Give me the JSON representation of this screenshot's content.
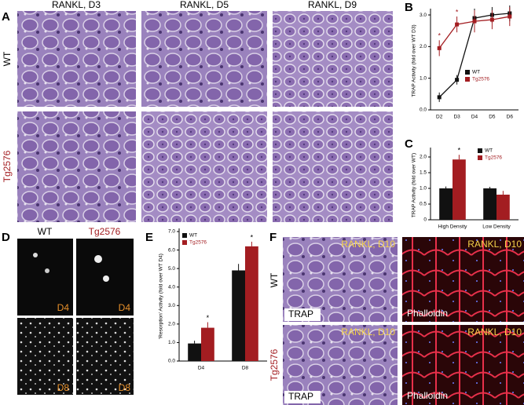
{
  "figure": {
    "panels": [
      "A",
      "B",
      "C",
      "D",
      "E",
      "F"
    ]
  },
  "panel_a": {
    "columns": [
      "RANKL, D3",
      "RANKL, D5",
      "RANKL, D9"
    ],
    "rows": [
      "WT",
      "Tg2576"
    ]
  },
  "panel_d": {
    "columns": [
      "WT",
      "Tg2576"
    ],
    "day_labels": [
      "D4",
      "D4",
      "D8",
      "D8"
    ]
  },
  "panel_f": {
    "rows": [
      "WT",
      "Tg2576"
    ],
    "image_labels": [
      "RANKL, D10",
      "RANKL, D10",
      "RANKL, D10",
      "RANKL, D10"
    ],
    "stain_labels": [
      "TRAP",
      "Phalloidin",
      "TRAP",
      "Phalloidin"
    ]
  },
  "chart_data": [
    {
      "type": "line",
      "y_label": "TRAP Activity (fold over WT D3)",
      "categories": [
        "D2",
        "D3",
        "D4",
        "D5",
        "D6"
      ],
      "series": [
        {
          "name": "WT",
          "color": "#111111",
          "values": [
            0.4,
            0.95,
            2.9,
            3.0,
            3.05
          ],
          "errors": [
            0.15,
            0.15,
            0.3,
            0.25,
            0.25
          ]
        },
        {
          "name": "Tg2576",
          "color": "#a31d21",
          "values": [
            1.95,
            2.7,
            2.8,
            2.85,
            2.95
          ],
          "errors": [
            0.25,
            0.25,
            0.35,
            0.3,
            0.3
          ]
        }
      ],
      "annotations": [
        "*",
        "*"
      ],
      "ylim": [
        0,
        3.1
      ],
      "yticks": [
        {
          "value": 0,
          "label": "0.0"
        },
        {
          "value": 1,
          "label": "1.0"
        },
        {
          "value": 2,
          "label": "2.0"
        },
        {
          "value": 3,
          "label": "3.0"
        }
      ]
    },
    {
      "type": "bar",
      "y_label": "TRAP Activity (fold over WT)",
      "categories": [
        "High Density",
        "Low Density"
      ],
      "series": [
        {
          "name": "WT",
          "color": "#111111",
          "values": [
            1.0,
            1.0
          ],
          "errors": [
            0.06,
            0.05
          ]
        },
        {
          "name": "Tg2576",
          "color": "#a31d21",
          "values": [
            1.92,
            0.8
          ],
          "errors": [
            0.15,
            0.12
          ]
        }
      ],
      "annotations": [
        "*"
      ],
      "ylim": [
        0,
        2.2
      ],
      "yticks": [
        0,
        0.5,
        {
          "value": 1,
          "label": "1.0"
        },
        1.5,
        {
          "value": 2,
          "label": "2.0"
        }
      ]
    },
    {
      "type": "bar",
      "y_label": "'Resorption' Activity (fold over WT D4)",
      "categories": [
        "D4",
        "D8"
      ],
      "series": [
        {
          "name": "WT",
          "color": "#111111",
          "values": [
            0.95,
            4.9
          ],
          "errors": [
            0.15,
            0.35
          ]
        },
        {
          "name": "Tg2576",
          "color": "#a31d21",
          "values": [
            1.8,
            6.2
          ],
          "errors": [
            0.3,
            0.25
          ]
        }
      ],
      "annotations": [
        "*",
        "*"
      ],
      "ylim": [
        0,
        7
      ],
      "yticks": [
        {
          "value": 0,
          "label": "0.0"
        },
        {
          "value": 1,
          "label": "1.0"
        },
        {
          "value": 2,
          "label": "2.0"
        },
        {
          "value": 3,
          "label": "3.0"
        },
        {
          "value": 4,
          "label": "4.0"
        },
        {
          "value": 5,
          "label": "5.0"
        },
        {
          "value": 6,
          "label": "6.0"
        },
        {
          "value": 7,
          "label": "7.0"
        }
      ]
    }
  ]
}
